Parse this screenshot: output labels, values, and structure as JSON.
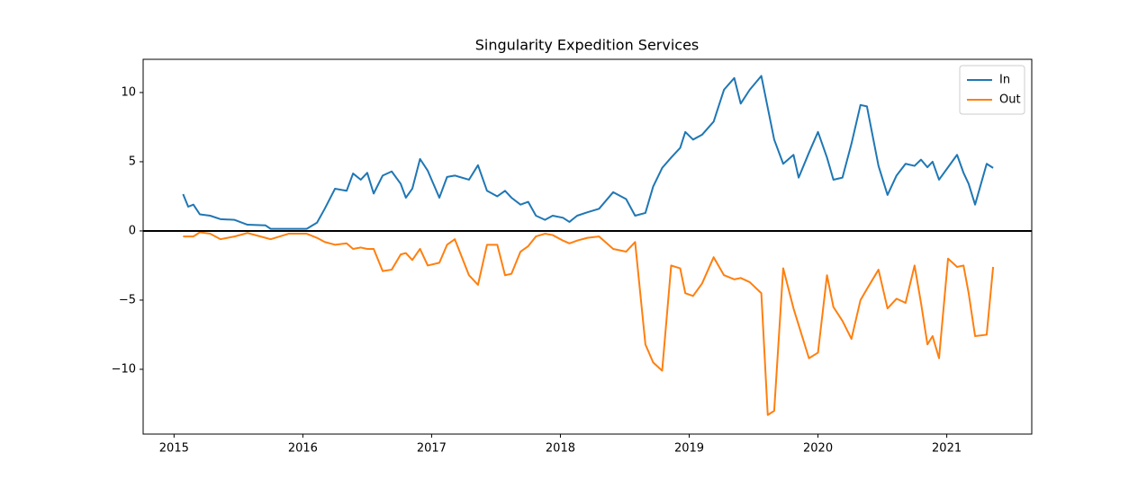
{
  "chart_data": {
    "type": "line",
    "title": "Singularity Expedition Services",
    "x": [
      2015.07,
      2015.11,
      2015.15,
      2015.2,
      2015.28,
      2015.36,
      2015.47,
      2015.57,
      2015.71,
      2015.75,
      2015.89,
      2016.03,
      2016.11,
      2016.17,
      2016.25,
      2016.34,
      2016.39,
      2016.45,
      2016.5,
      2016.55,
      2016.62,
      2016.69,
      2016.76,
      2016.8,
      2016.85,
      2016.91,
      2016.97,
      2017.06,
      2017.12,
      2017.18,
      2017.29,
      2017.36,
      2017.43,
      2017.51,
      2017.57,
      2017.62,
      2017.69,
      2017.75,
      2017.81,
      2017.88,
      2017.94,
      2018.02,
      2018.07,
      2018.13,
      2018.21,
      2018.3,
      2018.41,
      2018.51,
      2018.58,
      2018.66,
      2018.72,
      2018.79,
      2018.86,
      2018.93,
      2018.97,
      2019.03,
      2019.1,
      2019.19,
      2019.27,
      2019.35,
      2019.4,
      2019.47,
      2019.56,
      2019.61,
      2019.66,
      2019.73,
      2019.81,
      2019.85,
      2019.93,
      2020.0,
      2020.07,
      2020.12,
      2020.19,
      2020.26,
      2020.33,
      2020.38,
      2020.47,
      2020.54,
      2020.61,
      2020.68,
      2020.75,
      2020.8,
      2020.85,
      2020.89,
      2020.94,
      2021.01,
      2021.08,
      2021.13,
      2021.17,
      2021.22,
      2021.31,
      2021.36
    ],
    "series": [
      {
        "name": "In",
        "color": "#1f77b4",
        "values": [
          2.66,
          1.75,
          1.9,
          1.2,
          1.1,
          0.85,
          0.8,
          0.45,
          0.4,
          0.15,
          0.15,
          0.15,
          0.6,
          1.6,
          3.05,
          2.9,
          4.15,
          3.7,
          4.2,
          2.7,
          4.0,
          4.3,
          3.4,
          2.4,
          3.05,
          5.2,
          4.35,
          2.4,
          3.9,
          4.0,
          3.7,
          4.75,
          2.9,
          2.5,
          2.9,
          2.4,
          1.9,
          2.1,
          1.1,
          0.8,
          1.1,
          0.95,
          0.65,
          1.1,
          1.35,
          1.6,
          2.8,
          2.3,
          1.1,
          1.3,
          3.2,
          4.55,
          5.3,
          6.0,
          7.15,
          6.6,
          6.95,
          7.9,
          10.2,
          11.05,
          9.2,
          10.2,
          11.2,
          8.9,
          6.6,
          4.85,
          5.5,
          3.85,
          5.65,
          7.15,
          5.3,
          3.7,
          3.85,
          6.3,
          9.1,
          9.0,
          4.7,
          2.6,
          4.0,
          4.85,
          4.7,
          5.15,
          4.6,
          5.0,
          3.7,
          4.6,
          5.5,
          4.2,
          3.4,
          1.9,
          4.85,
          4.55
        ]
      },
      {
        "name": "Out",
        "color": "#ff7f0e",
        "values": [
          -0.4,
          -0.4,
          -0.4,
          -0.1,
          -0.2,
          -0.6,
          -0.4,
          -0.15,
          -0.5,
          -0.6,
          -0.2,
          -0.2,
          -0.5,
          -0.8,
          -1.0,
          -0.9,
          -1.3,
          -1.2,
          -1.3,
          -1.3,
          -2.9,
          -2.8,
          -1.7,
          -1.6,
          -2.1,
          -1.3,
          -2.5,
          -2.3,
          -1.0,
          -0.6,
          -3.2,
          -3.9,
          -1.0,
          -1.0,
          -3.2,
          -3.1,
          -1.5,
          -1.1,
          -0.4,
          -0.2,
          -0.3,
          -0.7,
          -0.9,
          -0.7,
          -0.5,
          -0.4,
          -1.3,
          -1.5,
          -0.8,
          -8.2,
          -9.5,
          -10.1,
          -2.5,
          -2.7,
          -4.5,
          -4.7,
          -3.8,
          -1.9,
          -3.2,
          -3.5,
          -3.4,
          -3.7,
          -4.5,
          -13.3,
          -13.0,
          -2.7,
          -5.6,
          -6.8,
          -9.2,
          -8.8,
          -3.2,
          -5.5,
          -6.5,
          -7.8,
          -5.0,
          -4.2,
          -2.8,
          -5.6,
          -4.9,
          -5.2,
          -2.5,
          -5.2,
          -8.2,
          -7.6,
          -9.2,
          -2.0,
          -2.6,
          -2.5,
          -4.5,
          -7.6,
          -7.5,
          -2.6
        ]
      }
    ],
    "xlim": [
      2014.76,
      2021.66
    ],
    "xticks": [
      2015,
      2016,
      2017,
      2018,
      2019,
      2020,
      2021
    ],
    "ylim": [
      -14.68,
      12.4
    ],
    "yticks": [
      {
        "value": -10,
        "label": "−10"
      },
      {
        "value": -5,
        "label": "−5"
      },
      0,
      5,
      10
    ],
    "hline": 0,
    "legend": "upper right",
    "grid": false
  }
}
